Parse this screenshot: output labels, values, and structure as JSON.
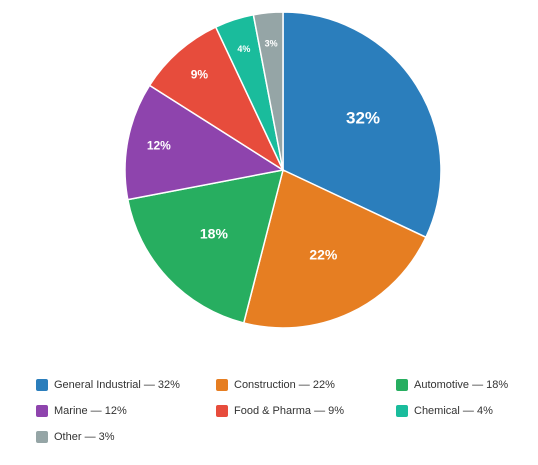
{
  "chart_data": {
    "type": "pie",
    "title": "",
    "legend_position": "bottom",
    "slices": [
      {
        "name": "General Industrial",
        "value": 32,
        "label": "32%",
        "legend": "General Industrial — 32%",
        "color": "#2b7ebc"
      },
      {
        "name": "Construction",
        "value": 22,
        "label": "22%",
        "legend": "Construction — 22%",
        "color": "#e67e22"
      },
      {
        "name": "Automotive",
        "value": 18,
        "label": "18%",
        "legend": "Automotive — 18%",
        "color": "#27ae60"
      },
      {
        "name": "Marine",
        "value": 12,
        "label": "12%",
        "legend": "Marine — 12%",
        "color": "#8e44ad"
      },
      {
        "name": "Food & Pharma",
        "value": 9,
        "label": "9%",
        "legend": "Food & Pharma — 9%",
        "color": "#e74c3c"
      },
      {
        "name": "Chemical",
        "value": 4,
        "label": "4%",
        "legend": "Chemical — 4%",
        "color": "#1abc9c"
      },
      {
        "name": "Other",
        "value": 3,
        "label": "3%",
        "legend": "Other — 3%",
        "color": "#95a5a6"
      }
    ]
  }
}
